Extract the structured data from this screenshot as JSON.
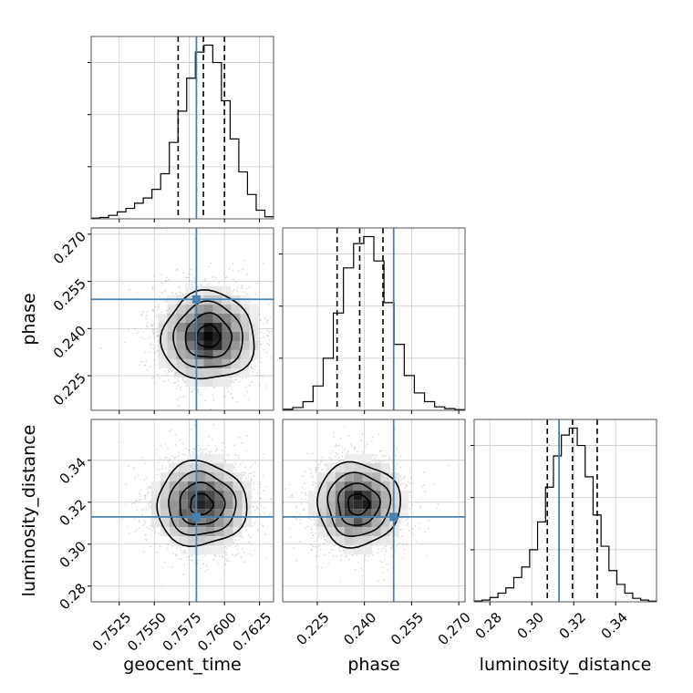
{
  "chart_data": {
    "type": "corner",
    "parameters": [
      {
        "name": "geocent_time",
        "label": "geocent_time",
        "range": [
          0.7505,
          0.7635
        ],
        "ticks": [
          0.7525,
          0.755,
          0.7575,
          0.76,
          0.7625
        ],
        "tick_labels": [
          "0.7525",
          "0.7550",
          "0.7575",
          "0.7600",
          "0.7625"
        ],
        "truth": 0.758,
        "quantiles": [
          0.7567,
          0.7585,
          0.76
        ],
        "hist": [
          0.004,
          0.008,
          0.02,
          0.04,
          0.06,
          0.09,
          0.12,
          0.17,
          0.26,
          0.44,
          0.62,
          0.81,
          0.96,
          1.0,
          0.9,
          0.68,
          0.46,
          0.27,
          0.14,
          0.05,
          0.012
        ]
      },
      {
        "name": "phase",
        "label": "phase",
        "range": [
          0.214,
          0.272
        ],
        "ticks": [
          0.225,
          0.24,
          0.255,
          0.27
        ],
        "tick_labels": [
          "0.225",
          "0.240",
          "0.255",
          "0.270"
        ],
        "truth": 0.2493,
        "quantiles": [
          0.2313,
          0.2385,
          0.2459
        ],
        "hist": [
          0.006,
          0.016,
          0.05,
          0.14,
          0.3,
          0.56,
          0.82,
          0.96,
          1.0,
          0.86,
          0.62,
          0.38,
          0.2,
          0.1,
          0.05,
          0.02,
          0.01,
          0.004
        ]
      },
      {
        "name": "luminosity_distance",
        "label": "luminosity_distance",
        "range": [
          0.2725,
          0.3595
        ],
        "ticks": [
          0.28,
          0.3,
          0.32,
          0.34
        ],
        "tick_labels": [
          "0.28",
          "0.30",
          "0.32",
          "0.34"
        ],
        "truth": 0.313,
        "quantiles": [
          0.3074,
          0.3194,
          0.3312
        ],
        "hist": [
          0.005,
          0.01,
          0.025,
          0.05,
          0.08,
          0.14,
          0.2,
          0.3,
          0.46,
          0.66,
          0.84,
          0.96,
          1.0,
          0.9,
          0.72,
          0.5,
          0.32,
          0.18,
          0.1,
          0.05,
          0.02,
          0.01,
          0.004
        ]
      }
    ],
    "pairs": [
      {
        "x": "geocent_time",
        "y": "phase",
        "mean": [
          0.75885,
          0.2375
        ],
        "sd": [
          0.00165,
          0.007
        ],
        "rho": 0.0,
        "truth": [
          0.758,
          0.2493
        ]
      },
      {
        "x": "geocent_time",
        "y": "luminosity_distance",
        "mean": [
          0.75835,
          0.319
        ],
        "sd": [
          0.0016,
          0.01
        ],
        "rho": 0.0,
        "truth": [
          0.758,
          0.313
        ]
      },
      {
        "x": "phase",
        "y": "luminosity_distance",
        "mean": [
          0.238,
          0.319
        ],
        "sd": [
          0.0066,
          0.01
        ],
        "rho": 0.0,
        "truth": [
          0.2493,
          0.313
        ]
      }
    ],
    "contour_levels_sigma": [
      0.5,
      1.0,
      1.5,
      2.0
    ],
    "truth_color": "#4682b4",
    "line_color": "#000000",
    "scatter_color": "#9a9a9a",
    "grid": true
  }
}
